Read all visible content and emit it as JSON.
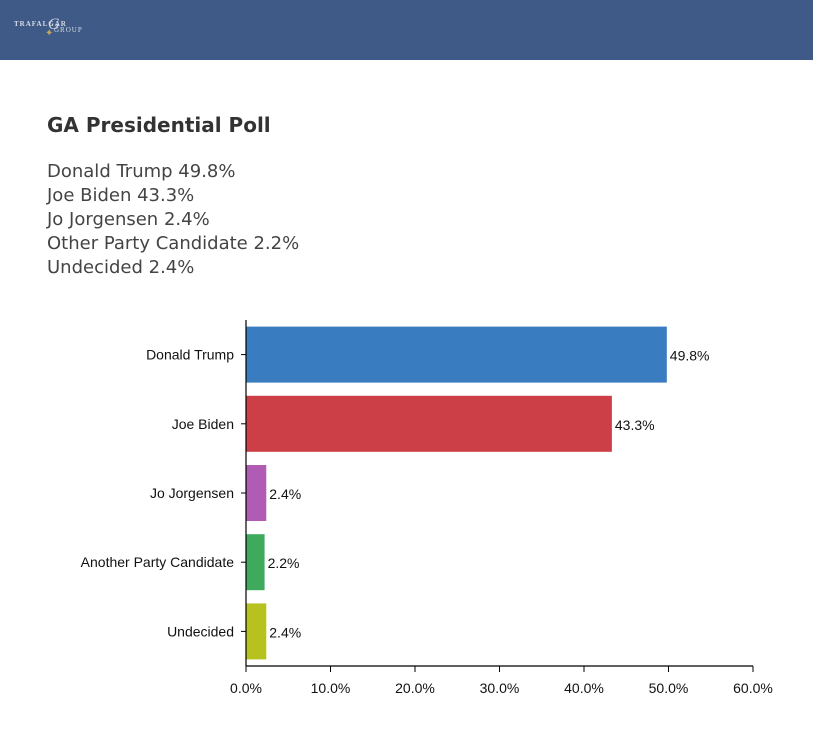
{
  "header": {
    "logo_text_top": "TRAFALGAR",
    "logo_text_bottom": "GROUP",
    "logo_star": "✦",
    "logo_swash": "G",
    "background_color": "#3f5a86"
  },
  "title": "GA Presidential Poll",
  "results": [
    "Donald Trump 49.8%",
    "Joe Biden 43.3%",
    "Jo Jorgensen 2.4%",
    "Other Party Candidate 2.2%",
    "Undecided 2.4%"
  ],
  "chart_data": {
    "type": "bar",
    "orientation": "horizontal",
    "categories": [
      "Donald Trump",
      "Joe Biden",
      "Jo Jorgensen",
      "Another Party Candidate",
      "Undecided"
    ],
    "values": [
      49.8,
      43.3,
      2.4,
      2.2,
      2.4
    ],
    "value_labels": [
      "49.8%",
      "43.3%",
      "2.4%",
      "2.2%",
      "2.4%"
    ],
    "colors": [
      "#3a7cc0",
      "#cc3f47",
      "#b15cb4",
      "#3faa5e",
      "#b8c21e"
    ],
    "xlim": [
      0,
      60
    ],
    "xticks": [
      0,
      10,
      20,
      30,
      40,
      50,
      60
    ],
    "xtick_labels": [
      "0.0%",
      "10.0%",
      "20.0%",
      "30.0%",
      "40.0%",
      "50.0%",
      "60.0%"
    ],
    "title": "",
    "xlabel": "",
    "ylabel": "",
    "grid": false
  }
}
